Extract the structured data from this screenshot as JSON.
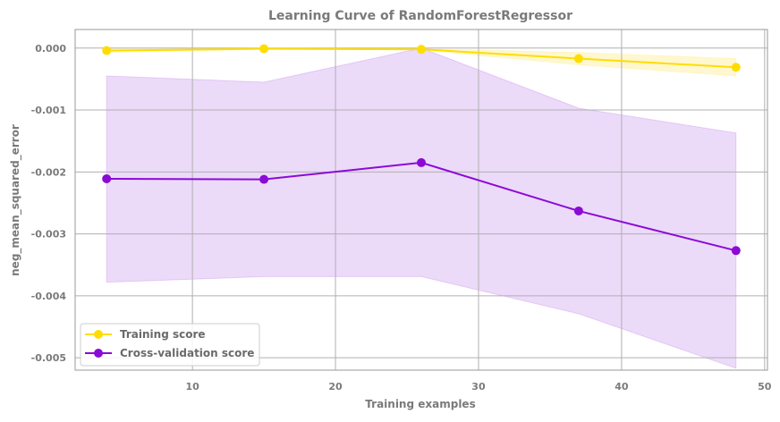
{
  "chart_data": {
    "type": "line",
    "title": "Learning Curve of RandomForestRegressor",
    "xlabel": "Training examples",
    "ylabel": "neg_mean_squared_error",
    "xlim": [
      1.8,
      50.2
    ],
    "ylim": [
      -0.0052,
      0.0003
    ],
    "x_ticks": [
      10,
      20,
      30,
      40,
      50
    ],
    "x_tick_labels": [
      "10",
      "20",
      "30",
      "40",
      "50"
    ],
    "y_ticks": [
      0.0,
      -0.001,
      -0.002,
      -0.003,
      -0.004,
      -0.005
    ],
    "y_tick_labels": [
      "0.000",
      "-0.001",
      "-0.002",
      "-0.003",
      "-0.004",
      "-0.005"
    ],
    "grid": true,
    "legend_position": "bottom-left",
    "x": [
      4,
      15,
      26,
      37,
      48
    ],
    "series": [
      {
        "name": "Training score",
        "color": "#FFDD00",
        "band_color": "#FFF6C8",
        "values": [
          -4e-05,
          -1e-05,
          -2e-05,
          -0.00017,
          -0.00031
        ],
        "upper": [
          -1e-05,
          0.0,
          -1e-05,
          -7e-05,
          -0.00017
        ],
        "lower": [
          -7e-05,
          -2e-05,
          -3e-05,
          -0.00027,
          -0.00045
        ]
      },
      {
        "name": "Cross-validation score",
        "color": "#8B0AD6",
        "band_color": "#E9D3F8",
        "values": [
          -0.00211,
          -0.00212,
          -0.00185,
          -0.00263,
          -0.00327
        ],
        "upper": [
          -0.00045,
          -0.00055,
          0.0,
          -0.00097,
          -0.00137
        ],
        "lower": [
          -0.00378,
          -0.00369,
          -0.00369,
          -0.00429,
          -0.00517
        ]
      }
    ]
  }
}
